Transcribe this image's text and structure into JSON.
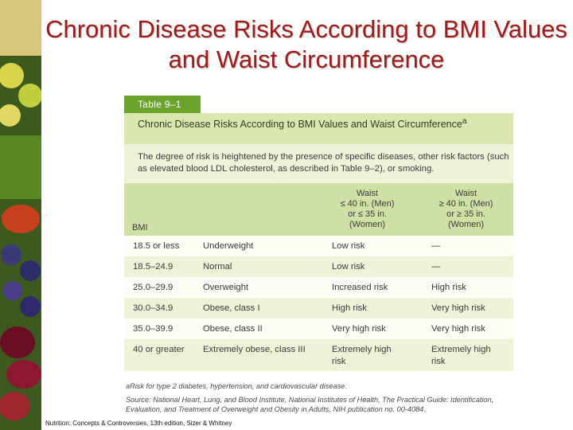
{
  "slide": {
    "title": "Chronic Disease Risks According to BMI Values and Waist Circumference",
    "credit": "Nutrition: Concepts & Controversies, 13th edition, Sizer & Whitney"
  },
  "table": {
    "label": "Table 9–1",
    "caption": "Chronic Disease Risks According to BMI Values and Waist Circumference",
    "caption_superscript": "a",
    "note": "The degree of risk is heightened by the presence of specific diseases, other risk factors (such as elevated blood LDL cholesterol, as described in Table 9–2), or smoking.",
    "header": {
      "bmi": "BMI",
      "col_a_lines": [
        "Waist",
        "≤ 40 in. (Men)",
        "or ≤ 35 in.",
        "(Women)"
      ],
      "col_b_lines": [
        "Waist",
        "≥ 40 in. (Men)",
        "or ≥ 35 in.",
        "(Women)"
      ]
    },
    "rows": [
      {
        "bmi": "18.5 or less",
        "category": "Underweight",
        "risk_a": "Low risk",
        "risk_b": "—"
      },
      {
        "bmi": "18.5–24.9",
        "category": "Normal",
        "risk_a": "Low risk",
        "risk_b": "—"
      },
      {
        "bmi": "25.0–29.9",
        "category": "Overweight",
        "risk_a": "Increased risk",
        "risk_b": "High risk"
      },
      {
        "bmi": "30.0–34.9",
        "category": "Obese, class I",
        "risk_a": "High risk",
        "risk_b": "Very high risk"
      },
      {
        "bmi": "35.0–39.9",
        "category": "Obese, class II",
        "risk_a": "Very high risk",
        "risk_b": "Very high risk"
      },
      {
        "bmi": "40 or greater",
        "category": "Extremely obese, class III",
        "risk_a": "Extremely high risk",
        "risk_b": "Extremely high risk"
      }
    ],
    "footnote_a": "aRisk for type 2 diabetes, hypertension, and cardiovascular disease.",
    "source": "Source: National Heart, Lung, and Blood Institute, National Institutes of Health, The Practical Guide: Identification, Evaluation, and Treatment of Overweight and Obesity in Adults, NIH publication no. 00-4084."
  },
  "colors": {
    "title": "#a01a1a",
    "label_bar": "#6aa42c",
    "header_band": "#cfe0a4",
    "caption_band": "#eef3d7"
  }
}
